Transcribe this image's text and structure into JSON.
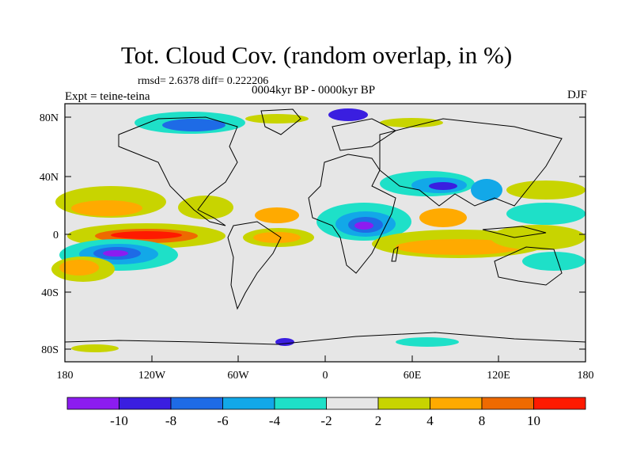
{
  "title": "Tot. Cloud Cov. (random overlap, in %)",
  "stats": "rmsd= 2.6378 diff= 0.222206",
  "experiment": "Expt = teine-teina",
  "period": "0004kyr BP - 0000kyr BP",
  "season": "DJF",
  "axes": {
    "y_ticks": [
      "80N",
      "40N",
      "0",
      "40S",
      "80S"
    ],
    "x_ticks": [
      "180",
      "120W",
      "60W",
      "0",
      "60E",
      "120E",
      "180"
    ]
  },
  "colorbar": {
    "labels": [
      "-10",
      "-8",
      "-6",
      "-4",
      "-2",
      "2",
      "4",
      "8",
      "10"
    ],
    "colors": [
      "#8c1cf0",
      "#3a1ee0",
      "#1e6be6",
      "#12a8e8",
      "#1ee0c8",
      "#e6e6e6",
      "#c8d400",
      "#ffaa00",
      "#ee6a00",
      "#ff1a00"
    ]
  },
  "colors": {
    "land_fill": "#e6e6e6",
    "coast": "#000000"
  }
}
